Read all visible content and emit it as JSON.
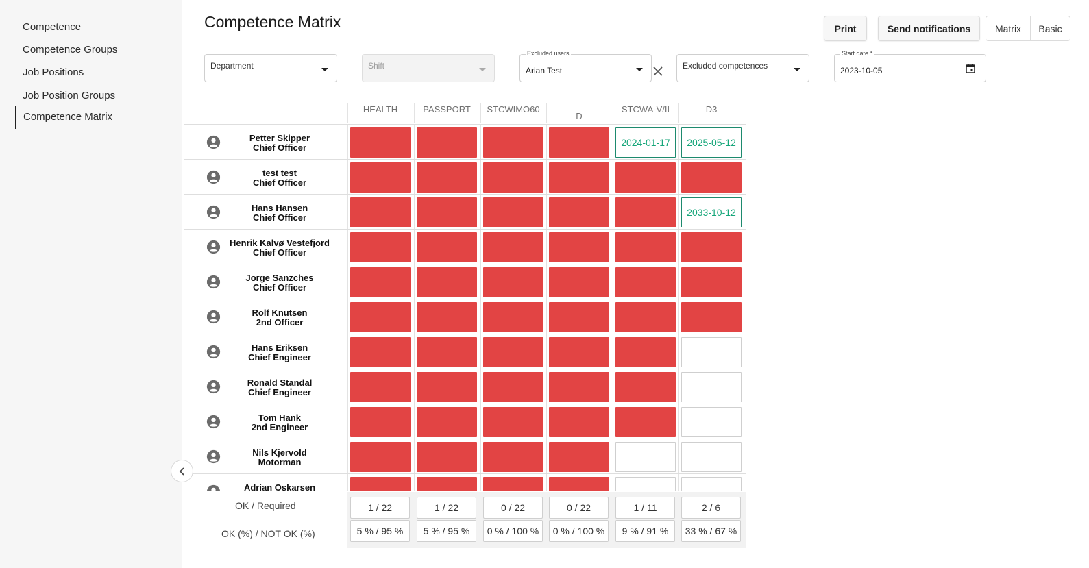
{
  "sidebar": {
    "items": [
      {
        "label": "Competence"
      },
      {
        "label": "Competence Groups"
      },
      {
        "label": "Job Positions"
      },
      {
        "label": "Job Position Groups"
      },
      {
        "label": "Competence Matrix",
        "active": true
      }
    ]
  },
  "header": {
    "title": "Competence Matrix",
    "print_label": "Print",
    "send_label": "Send notifications",
    "view_matrix": "Matrix",
    "view_basic": "Basic"
  },
  "filters": {
    "department": {
      "placeholder": "Department"
    },
    "shift": {
      "placeholder": "Shift",
      "disabled": true
    },
    "excluded_users": {
      "label": "Excluded users",
      "value": "Arian Test"
    },
    "excluded_competences": {
      "placeholder": "Excluded competences"
    },
    "start_date": {
      "label": "Start date *",
      "value": "2023-10-05"
    }
  },
  "matrix": {
    "columns": [
      "HEALTH",
      "PASSPORT",
      "STCWIMO60",
      "D",
      "STCWA-V/II",
      "D3"
    ],
    "rows": [
      {
        "name": "Petter Skipper",
        "position": "Chief Officer",
        "cells": [
          "red",
          "red",
          "red",
          "red",
          "2024-01-17",
          "2025-05-12"
        ]
      },
      {
        "name": "test test",
        "position": "Chief Officer",
        "cells": [
          "red",
          "red",
          "red",
          "red",
          "red",
          "red"
        ]
      },
      {
        "name": "Hans Hansen",
        "position": "Chief Officer",
        "cells": [
          "red",
          "red",
          "red",
          "red",
          "red",
          "2033-10-12"
        ]
      },
      {
        "name": "Henrik Kalvø Vestefjord",
        "position": "Chief Officer",
        "cells": [
          "red",
          "red",
          "red",
          "red",
          "red",
          "red"
        ]
      },
      {
        "name": "Jorge Sanzches",
        "position": "Chief Officer",
        "cells": [
          "red",
          "red",
          "red",
          "red",
          "red",
          "red"
        ]
      },
      {
        "name": "Rolf Knutsen",
        "position": "2nd Officer",
        "cells": [
          "red",
          "red",
          "red",
          "red",
          "red",
          "red"
        ]
      },
      {
        "name": "Hans Eriksen",
        "position": "Chief Engineer",
        "cells": [
          "red",
          "red",
          "red",
          "red",
          "red",
          "empty"
        ]
      },
      {
        "name": "Ronald Standal",
        "position": "Chief Engineer",
        "cells": [
          "red",
          "red",
          "red",
          "red",
          "red",
          "empty"
        ]
      },
      {
        "name": "Tom Hank",
        "position": "2nd Engineer",
        "cells": [
          "red",
          "red",
          "red",
          "red",
          "red",
          "empty"
        ]
      },
      {
        "name": "Nils Kjervold",
        "position": "Motorman",
        "cells": [
          "red",
          "red",
          "red",
          "red",
          "empty",
          "empty"
        ]
      },
      {
        "name": "Adrian Oskarsen",
        "position": "",
        "cells": [
          "red",
          "red",
          "red",
          "red",
          "empty",
          "empty"
        ]
      }
    ],
    "summary": {
      "ok_required_label": "OK / Required",
      "ok_pct_label": "OK (%) / NOT OK (%)",
      "ok_required": [
        "1 / 22",
        "1 / 22",
        "0 / 22",
        "0 / 22",
        "1 / 11",
        "2 / 6"
      ],
      "ok_pct": [
        "5 % / 95 %",
        "5 % / 95 %",
        "0 % / 100 %",
        "0 % / 100 %",
        "9 % / 91 %",
        "33 % / 67 %"
      ]
    }
  },
  "colors": {
    "not_ok": "#e24444",
    "ok_border": "#1d8a6e",
    "ok_text": "#16a67a"
  }
}
